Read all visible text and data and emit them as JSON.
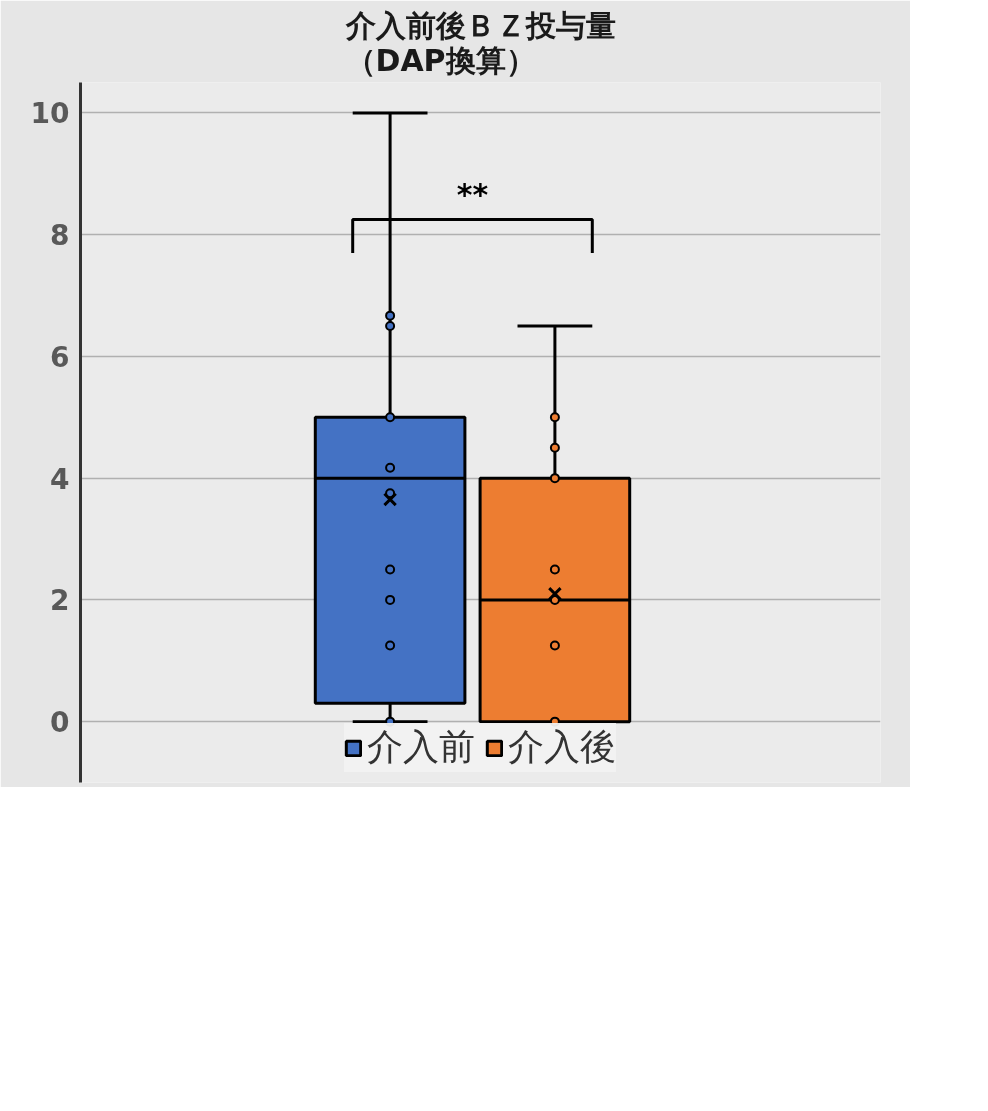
{
  "chart_data": {
    "type": "box",
    "title": "介入前後ＢＺ投与量",
    "subtitle": "（DAP換算）",
    "categories": [
      null
    ],
    "series": [
      {
        "name": "介入前",
        "color": "#4472c4",
        "boxes": [
          {
            "low": 0,
            "q1": 0.3,
            "median": 4,
            "q3": 5,
            "high": 10,
            "mean": 3.65,
            "outliers": [
              0,
              1.25,
              2,
              2.5,
              3.75,
              4.17,
              5,
              6.5,
              6.67
            ]
          }
        ]
      },
      {
        "name": "介入後",
        "color": "#ed7d31",
        "boxes": [
          {
            "low": 0,
            "q1": 0,
            "median": 2,
            "q3": 4,
            "high": 6.5,
            "mean": 2.1,
            "outliers": [
              0,
              1.25,
              2,
              2.5,
              4,
              4.5,
              5
            ]
          }
        ]
      }
    ],
    "annotations": [
      "**"
    ],
    "ylim": [
      -1,
      10.5
    ],
    "yticks": [
      0,
      2,
      4,
      6,
      8,
      10
    ],
    "grid": "y",
    "legend": "bottom",
    "marker": "circle"
  }
}
